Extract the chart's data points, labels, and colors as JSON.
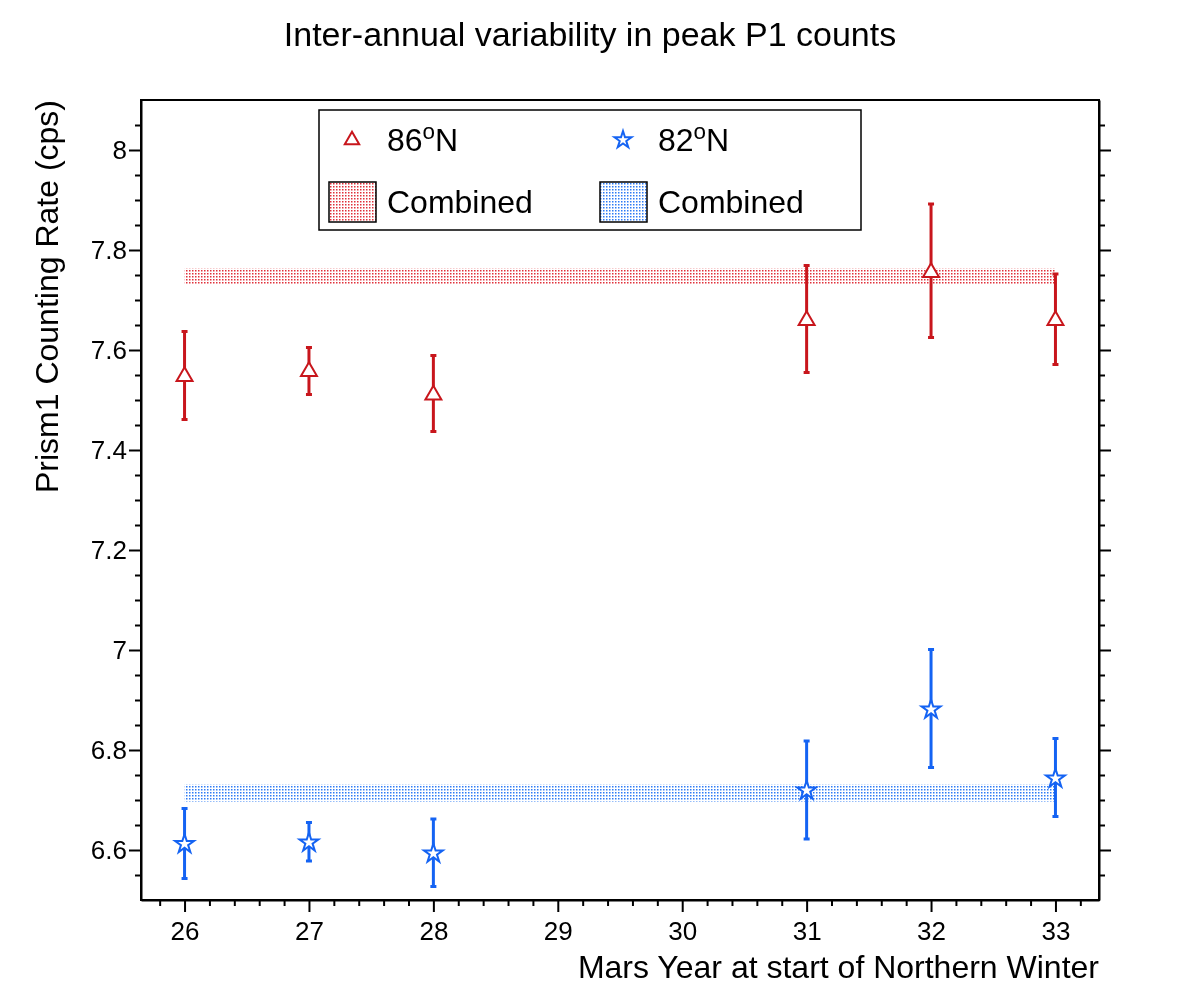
{
  "chart_data": {
    "type": "scatter",
    "title": "Inter-annual variability in peak P1 counts",
    "xlabel": "Mars Year at start of Northern Winter",
    "ylabel": "Prism1 Counting Rate (cps)",
    "x": [
      26,
      27,
      28,
      31,
      32,
      33
    ],
    "series": [
      {
        "name": "86$^{o}$N",
        "color": "#c8161c",
        "marker": "triangle",
        "values": [
          7.547,
          7.557,
          7.51,
          7.659,
          7.755,
          7.659
        ],
        "errors": [
          [
            7.461,
            7.637
          ],
          [
            7.511,
            7.605
          ],
          [
            7.437,
            7.589
          ],
          [
            7.555,
            7.769
          ],
          [
            7.625,
            7.892
          ],
          [
            7.571,
            7.752
          ]
        ]
      },
      {
        "name": "82$^{o}$N",
        "color": "#1463f3",
        "marker": "star",
        "values": [
          6.612,
          6.615,
          6.593,
          6.719,
          6.881,
          6.743
        ],
        "errors": [
          [
            6.543,
            6.683
          ],
          [
            6.578,
            6.655
          ],
          [
            6.527,
            6.662
          ],
          [
            6.622,
            6.818
          ],
          [
            6.765,
            7.001
          ],
          [
            6.667,
            6.823
          ]
        ]
      }
    ],
    "bands": [
      {
        "axis": "y",
        "from": 7.732,
        "to": 7.763,
        "label": "Combined",
        "color": "#e0303a"
      },
      {
        "axis": "y",
        "from": 6.697,
        "to": 6.731,
        "label": "Combined",
        "color": "#2e7bf5"
      }
    ],
    "xlim": [
      25.65,
      33.35
    ],
    "xticks": [
      {
        "value": 25.8,
        "label": null
      },
      26,
      {
        "value": 26.2,
        "label": null
      },
      {
        "value": 26.4,
        "label": null
      },
      {
        "value": 26.6,
        "label": null
      },
      {
        "value": 26.8,
        "label": null
      },
      27,
      {
        "value": 27.2,
        "label": null
      },
      {
        "value": 27.4,
        "label": null
      },
      {
        "value": 27.6,
        "label": null
      },
      {
        "value": 27.8,
        "label": null
      },
      28,
      {
        "value": 28.2,
        "label": null
      },
      {
        "value": 28.4,
        "label": null
      },
      {
        "value": 28.6,
        "label": null
      },
      {
        "value": 28.8,
        "label": null
      },
      29,
      {
        "value": 29.2,
        "label": null
      },
      {
        "value": 29.4,
        "label": null
      },
      {
        "value": 29.6,
        "label": null
      },
      {
        "value": 29.8,
        "label": null
      },
      30,
      {
        "value": 30.2,
        "label": null
      },
      {
        "value": 30.4,
        "label": null
      },
      {
        "value": 30.6,
        "label": null
      },
      {
        "value": 30.8,
        "label": null
      },
      31,
      {
        "value": 31.2,
        "label": null
      },
      {
        "value": 31.4,
        "label": null
      },
      {
        "value": 31.6,
        "label": null
      },
      {
        "value": 31.8,
        "label": null
      },
      32,
      {
        "value": 32.2,
        "label": null
      },
      {
        "value": 32.4,
        "label": null
      },
      {
        "value": 32.6,
        "label": null
      },
      {
        "value": 32.8,
        "label": null
      },
      33,
      {
        "value": 33.2,
        "label": null
      }
    ],
    "ylim": [
      6.5,
      8.1
    ],
    "yticks": [
      {
        "value": 6.55,
        "label": null
      },
      6.6,
      {
        "value": 6.65,
        "label": null
      },
      {
        "value": 6.7,
        "label": null
      },
      {
        "value": 6.75,
        "label": null
      },
      6.8,
      {
        "value": 6.85,
        "label": null
      },
      {
        "value": 6.9,
        "label": null
      },
      {
        "value": 6.95,
        "label": null
      },
      7,
      {
        "value": 7.05,
        "label": null
      },
      {
        "value": 7.1,
        "label": null
      },
      {
        "value": 7.15,
        "label": null
      },
      7.2,
      {
        "value": 7.25,
        "label": null
      },
      {
        "value": 7.3,
        "label": null
      },
      {
        "value": 7.35,
        "label": null
      },
      7.4,
      {
        "value": 7.45,
        "label": null
      },
      {
        "value": 7.5,
        "label": null
      },
      {
        "value": 7.55,
        "label": null
      },
      7.6,
      {
        "value": 7.65,
        "label": null
      },
      {
        "value": 7.7,
        "label": null
      },
      {
        "value": 7.75,
        "label": null
      },
      7.8,
      {
        "value": 7.85,
        "label": null
      },
      {
        "value": 7.9,
        "label": null
      },
      {
        "value": 7.95,
        "label": null
      },
      8,
      {
        "value": 8.05,
        "label": null
      }
    ],
    "legend": "top",
    "grid": false
  }
}
